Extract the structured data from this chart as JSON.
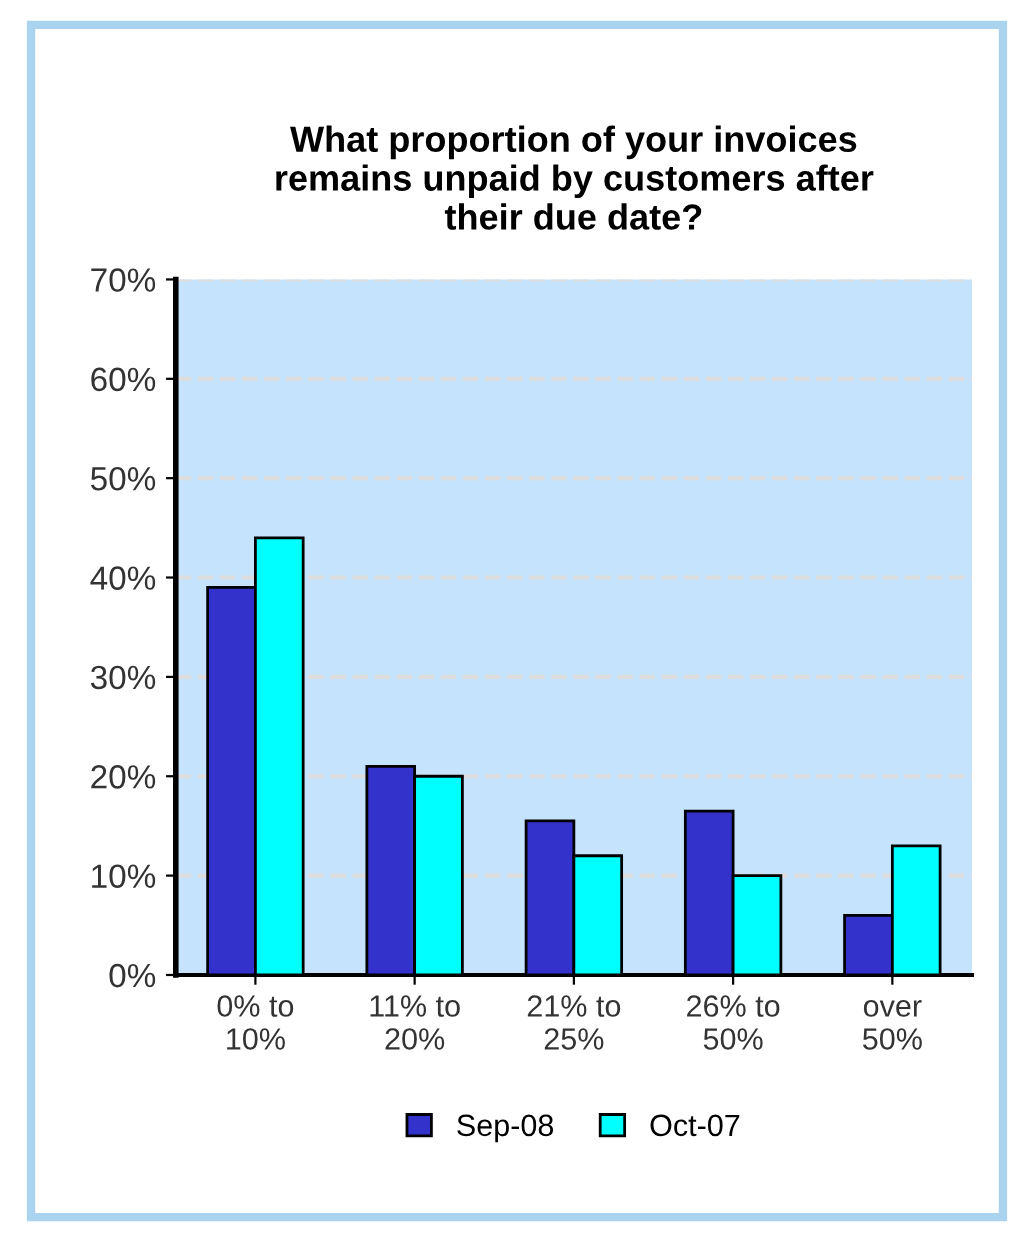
{
  "chart_data": {
    "type": "bar",
    "title": "What proportion of your invoices\nremains unpaid by customers after\ntheir due date?",
    "categories": [
      "0% to\n10%",
      "11% to\n20%",
      "21% to\n25%",
      "26% to\n50%",
      "over\n50%"
    ],
    "series": [
      {
        "name": "Sep-08",
        "color": "#3333cc",
        "values": [
          39,
          21,
          15.5,
          16.5,
          6
        ]
      },
      {
        "name": "Oct-07",
        "color": "#00ffff",
        "values": [
          44,
          20,
          12,
          10,
          13
        ]
      }
    ],
    "ylim": [
      0,
      70
    ],
    "yticks": [
      {
        "value": 0,
        "label": "0%"
      },
      {
        "value": 10,
        "label": "10%"
      },
      {
        "value": 20,
        "label": "20%"
      },
      {
        "value": 30,
        "label": "30%"
      },
      {
        "value": 40,
        "label": "40%"
      },
      {
        "value": 50,
        "label": "50%"
      },
      {
        "value": 60,
        "label": "60%"
      },
      {
        "value": 70,
        "label": "70%"
      }
    ],
    "grid": "y",
    "legend": "bottom"
  }
}
